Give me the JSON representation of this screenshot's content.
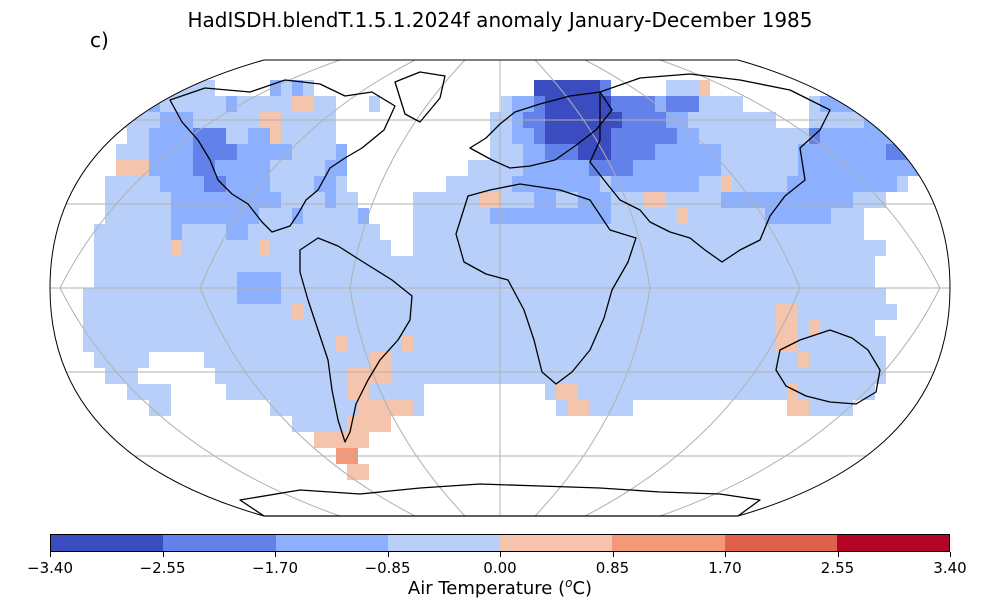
{
  "title": "HadISDH.blendT.1.5.1.2024f anomaly January-December 1985",
  "panel_label": "c)",
  "colorbar": {
    "label_prefix": "Air Temperature (",
    "label_sup": "o",
    "label_suffix": "C)",
    "ticks": [
      "−3.40",
      "−2.55",
      "−1.70",
      "−0.85",
      "0.00",
      "0.85",
      "1.70",
      "2.55",
      "3.40"
    ],
    "colors": [
      "#3b4cc0",
      "#6282ea",
      "#8db0fe",
      "#b8d0f9",
      "#f5c4ac",
      "#f4987a",
      "#de604d",
      "#b40426"
    ]
  },
  "map": {
    "projection": "Robinson",
    "land_outline_color": "#000000",
    "gridline_color": "#b0b0b0",
    "cell_color_index": {
      "1": "#6282ea",
      "2": "#8db0fe",
      "3": "#b8d0f9",
      "4": "#f5c4ac",
      "5": "#f4987a",
      "0": "#3b4cc0"
    }
  }
}
